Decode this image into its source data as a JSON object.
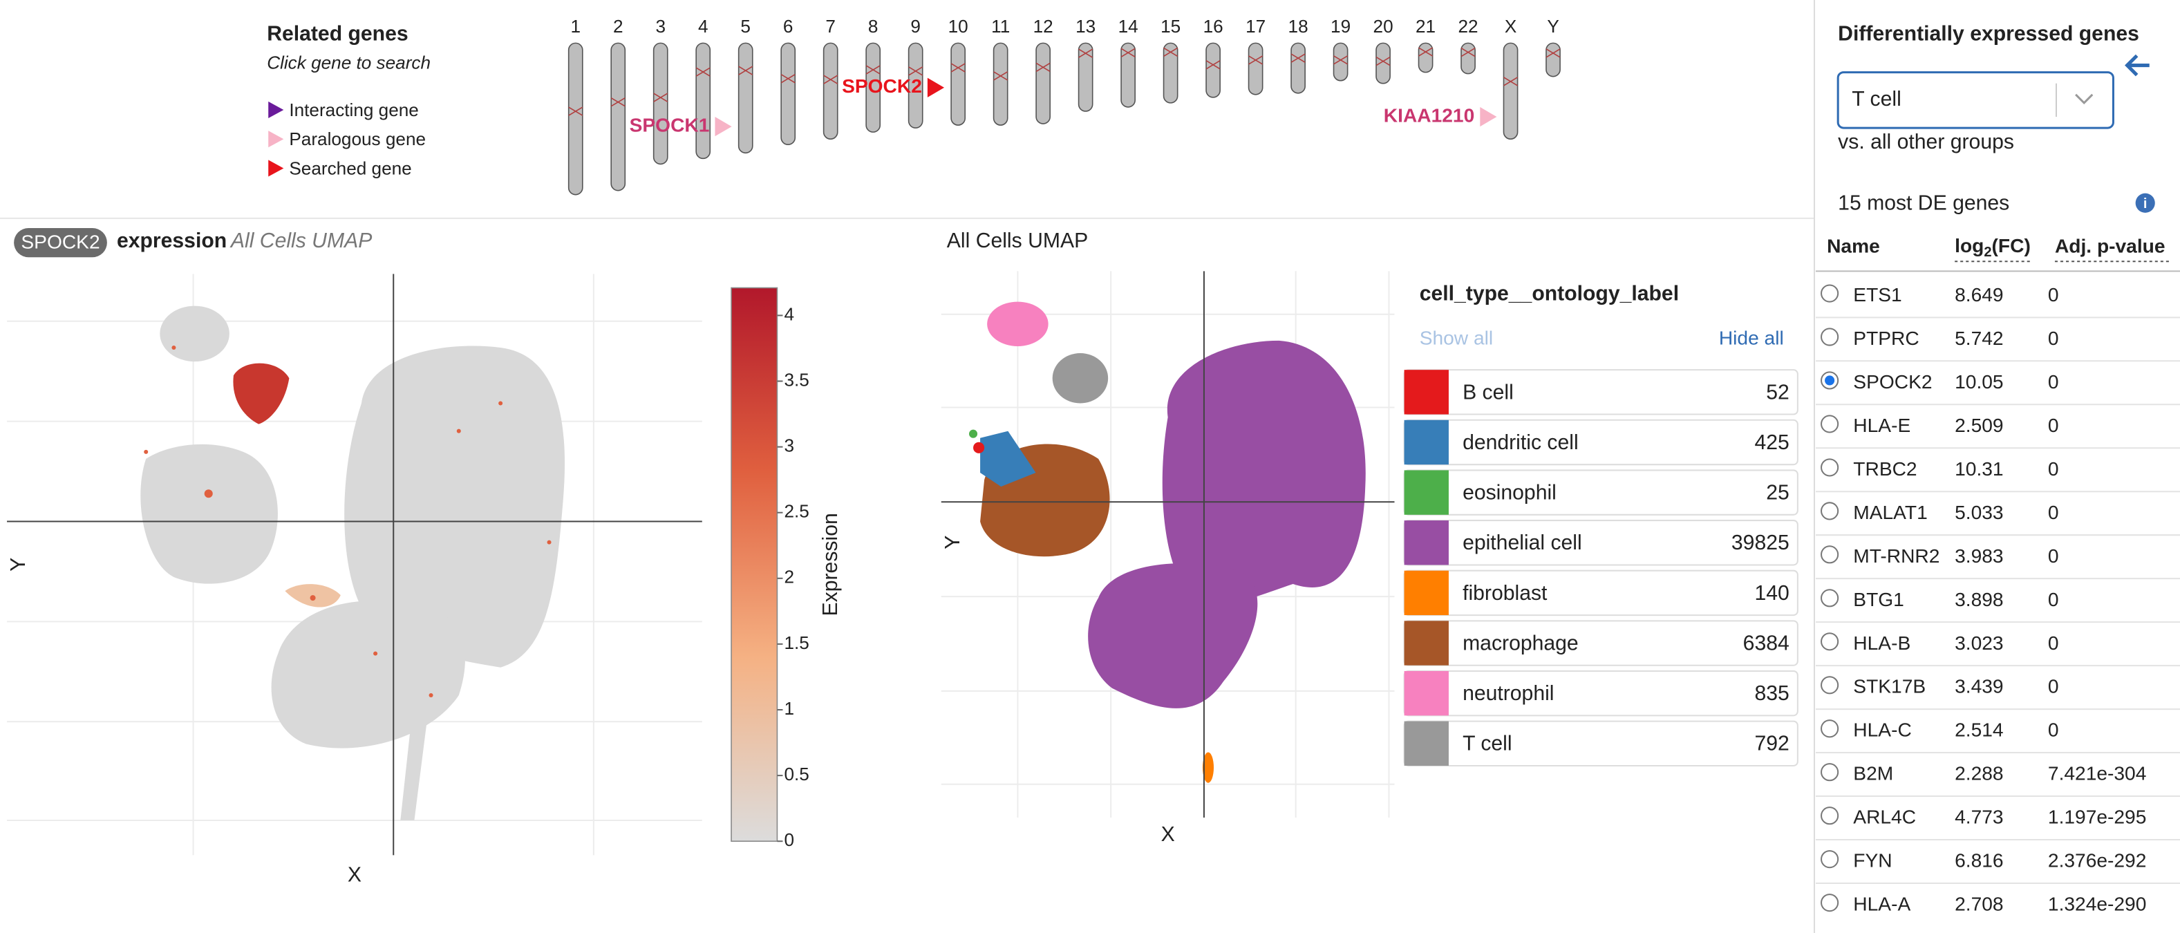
{
  "related_genes": {
    "title": "Related genes",
    "subtitle": "Click gene to search",
    "legend": [
      {
        "label": "Interacting gene",
        "color": "#6a1b9a"
      },
      {
        "label": "Paralogous gene",
        "color": "#f7b3c6"
      },
      {
        "label": "Searched gene",
        "color": "#e8141c"
      }
    ],
    "chromosomes": [
      "1",
      "2",
      "3",
      "4",
      "5",
      "6",
      "7",
      "8",
      "9",
      "10",
      "11",
      "12",
      "13",
      "14",
      "15",
      "16",
      "17",
      "18",
      "19",
      "20",
      "21",
      "22",
      "X",
      "Y"
    ],
    "genes": [
      {
        "name": "SPOCK1",
        "chromosome": "5",
        "text_color": "#c9366f",
        "marker_color": "#f7b3c6"
      },
      {
        "name": "SPOCK2",
        "chromosome": "10",
        "text_color": "#e8141c",
        "marker_color": "#e8141c"
      },
      {
        "name": "KIAA1210",
        "chromosome": "X",
        "text_color": "#c9366f",
        "marker_color": "#f7b3c6"
      }
    ]
  },
  "expression_plot": {
    "gene": "SPOCK2",
    "title": "expression",
    "subtitle": "All Cells UMAP",
    "x_label": "X",
    "y_label": "Y",
    "colorbar": {
      "label": "Expression",
      "range": [
        0,
        4.21
      ],
      "ticks": [
        0,
        0.5,
        1,
        1.5,
        2,
        2.5,
        3,
        3.5,
        4
      ],
      "colors": [
        "#dcdcdc",
        "#f5b183",
        "#e0603f",
        "#b2182b"
      ]
    }
  },
  "cluster_plot": {
    "title": "All Cells UMAP",
    "x_label": "X",
    "y_label": "Y",
    "legend": {
      "title": "cell_type__ontology_label",
      "show_all": "Show all",
      "hide_all": "Hide all",
      "items": [
        {
          "label": "B cell",
          "count": 52,
          "color": "#e41a1c"
        },
        {
          "label": "dendritic cell",
          "count": 425,
          "color": "#377eb8"
        },
        {
          "label": "eosinophil",
          "count": 25,
          "color": "#4daf4a"
        },
        {
          "label": "epithelial cell",
          "count": 39825,
          "color": "#984ea3"
        },
        {
          "label": "fibroblast",
          "count": 140,
          "color": "#ff7f00"
        },
        {
          "label": "macrophage",
          "count": 6384,
          "color": "#a65628"
        },
        {
          "label": "neutrophil",
          "count": 835,
          "color": "#f781bf"
        },
        {
          "label": "T cell",
          "count": 792,
          "color": "#999999"
        }
      ]
    }
  },
  "de_panel": {
    "title": "Differentially expressed genes",
    "group": "T cell",
    "comparison": "vs. all other groups",
    "count_label": "15 most DE genes",
    "columns": {
      "name": "Name",
      "fc": [
        "log",
        "2",
        "(FC)"
      ],
      "p": "Adj. p-value"
    },
    "selected": 2,
    "rows": [
      [
        "ETS1",
        "8.649",
        "0"
      ],
      [
        "PTPRC",
        "5.742",
        "0"
      ],
      [
        "SPOCK2",
        "10.05",
        "0"
      ],
      [
        "HLA-E",
        "2.509",
        "0"
      ],
      [
        "TRBC2",
        "10.31",
        "0"
      ],
      [
        "MALAT1",
        "5.033",
        "0"
      ],
      [
        "MT-RNR2",
        "3.983",
        "0"
      ],
      [
        "BTG1",
        "3.898",
        "0"
      ],
      [
        "HLA-B",
        "3.023",
        "0"
      ],
      [
        "STK17B",
        "3.439",
        "0"
      ],
      [
        "HLA-C",
        "2.514",
        "0"
      ],
      [
        "B2M",
        "2.288",
        "7.421e-304"
      ],
      [
        "ARL4C",
        "4.773",
        "1.197e-295"
      ],
      [
        "FYN",
        "6.816",
        "2.376e-292"
      ],
      [
        "HLA-A",
        "2.708",
        "1.324e-290"
      ]
    ]
  }
}
